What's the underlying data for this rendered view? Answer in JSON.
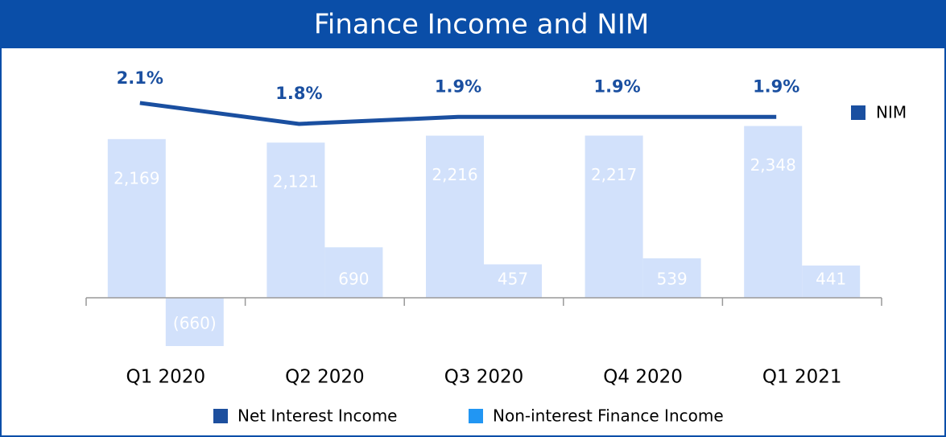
{
  "chart_data": {
    "type": "bar_line",
    "title": "Finance Income and NIM",
    "categories": [
      "Q1 2020",
      "Q2 2020",
      "Q3 2020",
      "Q4 2020",
      "Q1 2021"
    ],
    "bar_fill": "#d2e1fb",
    "series": [
      {
        "name": "Net Interest Income",
        "color": "#1d4f9e",
        "values": [
          2169,
          2121,
          2216,
          2217,
          2348
        ],
        "value_labels": [
          "2,169",
          "2,121",
          "2,216",
          "2,217",
          "2,348"
        ]
      },
      {
        "name": "Non-interest Finance Income",
        "color": "#2196f3",
        "values": [
          -660,
          690,
          457,
          539,
          441
        ],
        "value_labels": [
          "(660)",
          "690",
          "457",
          "539",
          "441"
        ]
      },
      {
        "name": "NIM",
        "color": "#1a4fa0",
        "type": "line",
        "values": [
          2.1,
          1.8,
          1.9,
          1.9,
          1.9
        ],
        "value_labels": [
          "2.1%",
          "1.8%",
          "1.9%",
          "1.9%",
          "1.9%"
        ]
      }
    ]
  }
}
